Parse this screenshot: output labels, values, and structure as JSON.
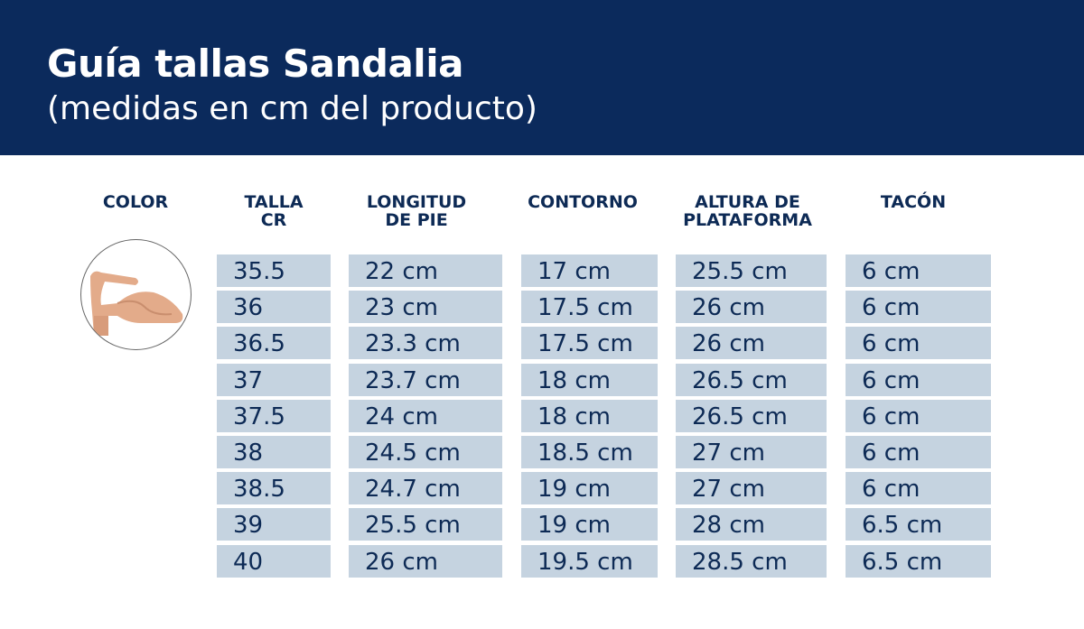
{
  "header": {
    "title": "Guía tallas Sandalia",
    "subtitle": "(medidas en cm del producto)"
  },
  "colors": {
    "header_bg": "#0b2a5c",
    "cell_bg": "#c5d3e0",
    "text": "#0d2a55"
  },
  "columns": {
    "color": "COLOR",
    "talla": [
      "TALLA",
      "CR"
    ],
    "longitud": [
      "LONGITUD",
      "DE PIE"
    ],
    "contorno": "CONTORNO",
    "altura": [
      "ALTURA DE",
      "PLATAFORMA"
    ],
    "tacon": "TACÓN"
  },
  "product_image": "beige-block-heel-sandal",
  "rows": [
    [
      "35.5",
      "22 cm",
      "17 cm",
      "25.5 cm",
      "6 cm"
    ],
    [
      "36",
      "23 cm",
      "17.5 cm",
      "26 cm",
      "6 cm"
    ],
    [
      "36.5",
      "23.3 cm",
      "17.5 cm",
      "26 cm",
      "6 cm"
    ],
    [
      "37",
      "23.7 cm",
      "18 cm",
      "26.5 cm",
      "6 cm"
    ],
    [
      "37.5",
      "24 cm",
      "18 cm",
      "26.5 cm",
      "6 cm"
    ],
    [
      "38",
      "24.5 cm",
      "18.5 cm",
      "27 cm",
      "6 cm"
    ],
    [
      "38.5",
      "24.7 cm",
      "19 cm",
      "27 cm",
      "6 cm"
    ],
    [
      "39",
      "25.5 cm",
      "19 cm",
      "28 cm",
      "6.5 cm"
    ],
    [
      "40",
      "26 cm",
      "19.5 cm",
      "28.5 cm",
      "6.5 cm"
    ]
  ]
}
